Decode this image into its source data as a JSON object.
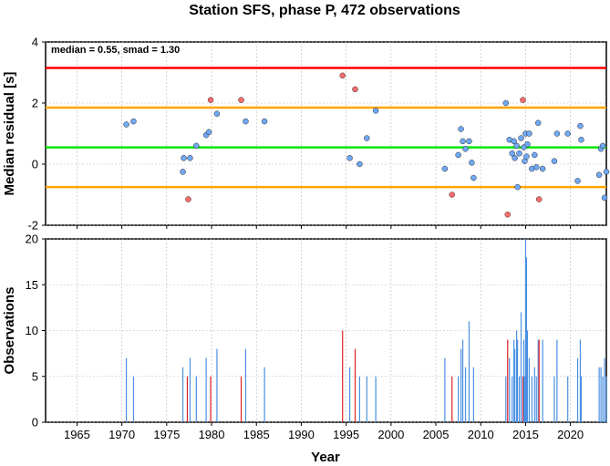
{
  "title": "Station SFS, phase P, 472 observations",
  "xlabel": "Year",
  "chart_data": [
    {
      "type": "scatter",
      "ylabel": "Median residual [s]",
      "annotation": "median = 0.55, smad = 1.30",
      "xlim": [
        1961.5,
        2024.0
      ],
      "ylim": [
        -2,
        4
      ],
      "yticks": [
        -2,
        0,
        2,
        4
      ],
      "xticks": [
        1965,
        1970,
        1975,
        1980,
        1985,
        1990,
        1995,
        2000,
        2005,
        2010,
        2015,
        2020
      ],
      "reference_lines": [
        {
          "name": "upper-red",
          "y": 3.15,
          "color": "#ff0000"
        },
        {
          "name": "upper-orange",
          "y": 1.85,
          "color": "#ffa500"
        },
        {
          "name": "median",
          "y": 0.55,
          "color": "#00e600"
        },
        {
          "name": "lower-orange",
          "y": -0.75,
          "color": "#ffa500"
        }
      ],
      "colors": {
        "normal": "#6fa8f5",
        "outlier": "#ff6b6b"
      },
      "points": [
        {
          "x": 1970.5,
          "y": 1.3,
          "outlier": false
        },
        {
          "x": 1971.3,
          "y": 1.4,
          "outlier": false
        },
        {
          "x": 1976.8,
          "y": -0.25,
          "outlier": false
        },
        {
          "x": 1976.9,
          "y": 0.2,
          "outlier": false
        },
        {
          "x": 1977.4,
          "y": -1.15,
          "outlier": true
        },
        {
          "x": 1977.6,
          "y": 0.2,
          "outlier": false
        },
        {
          "x": 1978.3,
          "y": 0.6,
          "outlier": false
        },
        {
          "x": 1979.4,
          "y": 0.95,
          "outlier": false
        },
        {
          "x": 1979.7,
          "y": 1.05,
          "outlier": false
        },
        {
          "x": 1979.9,
          "y": 2.1,
          "outlier": true
        },
        {
          "x": 1980.6,
          "y": 1.65,
          "outlier": false
        },
        {
          "x": 1983.3,
          "y": 2.1,
          "outlier": true
        },
        {
          "x": 1983.8,
          "y": 1.4,
          "outlier": false
        },
        {
          "x": 1985.9,
          "y": 1.4,
          "outlier": false
        },
        {
          "x": 1994.6,
          "y": 2.9,
          "outlier": true
        },
        {
          "x": 1995.4,
          "y": 0.2,
          "outlier": false
        },
        {
          "x": 1996.0,
          "y": 2.45,
          "outlier": true
        },
        {
          "x": 1996.5,
          "y": 0.0,
          "outlier": false
        },
        {
          "x": 1997.3,
          "y": 0.85,
          "outlier": false
        },
        {
          "x": 1998.3,
          "y": 1.75,
          "outlier": false
        },
        {
          "x": 2006.0,
          "y": -0.15,
          "outlier": false
        },
        {
          "x": 2006.8,
          "y": -1.0,
          "outlier": true
        },
        {
          "x": 2007.5,
          "y": 0.3,
          "outlier": false
        },
        {
          "x": 2007.8,
          "y": 1.15,
          "outlier": false
        },
        {
          "x": 2008.0,
          "y": 0.75,
          "outlier": false
        },
        {
          "x": 2008.3,
          "y": 0.5,
          "outlier": false
        },
        {
          "x": 2008.7,
          "y": 0.75,
          "outlier": false
        },
        {
          "x": 2009.0,
          "y": 0.05,
          "outlier": false
        },
        {
          "x": 2009.2,
          "y": -0.45,
          "outlier": false
        },
        {
          "x": 2012.8,
          "y": 2.0,
          "outlier": false
        },
        {
          "x": 2013.0,
          "y": -1.65,
          "outlier": true
        },
        {
          "x": 2013.2,
          "y": 0.8,
          "outlier": false
        },
        {
          "x": 2013.5,
          "y": 0.35,
          "outlier": false
        },
        {
          "x": 2013.7,
          "y": 0.75,
          "outlier": false
        },
        {
          "x": 2013.8,
          "y": 0.2,
          "outlier": false
        },
        {
          "x": 2014.0,
          "y": 0.6,
          "outlier": false
        },
        {
          "x": 2014.1,
          "y": -0.75,
          "outlier": false
        },
        {
          "x": 2014.3,
          "y": 0.35,
          "outlier": false
        },
        {
          "x": 2014.5,
          "y": 0.85,
          "outlier": false
        },
        {
          "x": 2014.7,
          "y": 2.1,
          "outlier": true
        },
        {
          "x": 2014.8,
          "y": 0.55,
          "outlier": false
        },
        {
          "x": 2014.9,
          "y": 0.1,
          "outlier": false
        },
        {
          "x": 2015.0,
          "y": 1.0,
          "outlier": false
        },
        {
          "x": 2015.1,
          "y": 0.25,
          "outlier": false
        },
        {
          "x": 2015.2,
          "y": 0.65,
          "outlier": false
        },
        {
          "x": 2015.4,
          "y": 1.0,
          "outlier": false
        },
        {
          "x": 2015.7,
          "y": -0.15,
          "outlier": false
        },
        {
          "x": 2016.0,
          "y": 0.3,
          "outlier": false
        },
        {
          "x": 2016.2,
          "y": -0.1,
          "outlier": false
        },
        {
          "x": 2016.4,
          "y": 1.35,
          "outlier": false
        },
        {
          "x": 2016.5,
          "y": -1.15,
          "outlier": true
        },
        {
          "x": 2016.9,
          "y": -0.15,
          "outlier": false
        },
        {
          "x": 2018.2,
          "y": 0.1,
          "outlier": false
        },
        {
          "x": 2018.5,
          "y": 1.0,
          "outlier": false
        },
        {
          "x": 2019.7,
          "y": 1.0,
          "outlier": false
        },
        {
          "x": 2020.8,
          "y": -0.55,
          "outlier": false
        },
        {
          "x": 2021.1,
          "y": 1.25,
          "outlier": false
        },
        {
          "x": 2021.2,
          "y": 0.8,
          "outlier": false
        },
        {
          "x": 2023.2,
          "y": -0.35,
          "outlier": false
        },
        {
          "x": 2023.4,
          "y": 0.5,
          "outlier": false
        },
        {
          "x": 2023.6,
          "y": 0.6,
          "outlier": false
        },
        {
          "x": 2023.8,
          "y": -1.1,
          "outlier": false
        },
        {
          "x": 2024.0,
          "y": -0.25,
          "outlier": false
        }
      ]
    },
    {
      "type": "bar",
      "ylabel": "Observations",
      "xlim": [
        1961.5,
        2024.0
      ],
      "ylim": [
        0,
        20
      ],
      "yticks": [
        0,
        5,
        10,
        15,
        20
      ],
      "xticks": [
        1965,
        1970,
        1975,
        1980,
        1985,
        1990,
        1995,
        2000,
        2005,
        2010,
        2015,
        2020
      ],
      "colors": {
        "normal": "#4a90e2",
        "outlier": "#e02020"
      },
      "bars": [
        {
          "x": 1970.5,
          "value": 7,
          "outlier": false
        },
        {
          "x": 1971.3,
          "value": 5,
          "outlier": false
        },
        {
          "x": 1976.8,
          "value": 6,
          "outlier": false
        },
        {
          "x": 1977.3,
          "value": 5,
          "outlier": true
        },
        {
          "x": 1977.6,
          "value": 7,
          "outlier": false
        },
        {
          "x": 1978.3,
          "value": 5,
          "outlier": false
        },
        {
          "x": 1979.4,
          "value": 7,
          "outlier": false
        },
        {
          "x": 1979.9,
          "value": 5,
          "outlier": true
        },
        {
          "x": 1980.6,
          "value": 8,
          "outlier": false
        },
        {
          "x": 1983.3,
          "value": 5,
          "outlier": true
        },
        {
          "x": 1983.8,
          "value": 8,
          "outlier": false
        },
        {
          "x": 1985.9,
          "value": 6,
          "outlier": false
        },
        {
          "x": 1994.6,
          "value": 10,
          "outlier": true
        },
        {
          "x": 1995.4,
          "value": 6,
          "outlier": false
        },
        {
          "x": 1996.0,
          "value": 8,
          "outlier": true
        },
        {
          "x": 1996.5,
          "value": 5,
          "outlier": false
        },
        {
          "x": 1997.3,
          "value": 5,
          "outlier": false
        },
        {
          "x": 1998.3,
          "value": 5,
          "outlier": false
        },
        {
          "x": 2006.0,
          "value": 7,
          "outlier": false
        },
        {
          "x": 2006.8,
          "value": 5,
          "outlier": true
        },
        {
          "x": 2007.5,
          "value": 5,
          "outlier": false
        },
        {
          "x": 2007.8,
          "value": 8,
          "outlier": false
        },
        {
          "x": 2008.0,
          "value": 9,
          "outlier": false
        },
        {
          "x": 2008.3,
          "value": 6,
          "outlier": false
        },
        {
          "x": 2008.7,
          "value": 11,
          "outlier": false
        },
        {
          "x": 2009.2,
          "value": 6,
          "outlier": false
        },
        {
          "x": 2012.8,
          "value": 5,
          "outlier": false
        },
        {
          "x": 2013.0,
          "value": 9,
          "outlier": true
        },
        {
          "x": 2013.2,
          "value": 7,
          "outlier": false
        },
        {
          "x": 2013.5,
          "value": 5,
          "outlier": false
        },
        {
          "x": 2013.7,
          "value": 9,
          "outlier": false
        },
        {
          "x": 2013.8,
          "value": 8,
          "outlier": false
        },
        {
          "x": 2014.0,
          "value": 10,
          "outlier": false
        },
        {
          "x": 2014.1,
          "value": 9,
          "outlier": false
        },
        {
          "x": 2014.3,
          "value": 5,
          "outlier": false
        },
        {
          "x": 2014.5,
          "value": 12,
          "outlier": false
        },
        {
          "x": 2014.7,
          "value": 5,
          "outlier": true
        },
        {
          "x": 2014.8,
          "value": 9,
          "outlier": false
        },
        {
          "x": 2014.9,
          "value": 5,
          "outlier": false
        },
        {
          "x": 2015.0,
          "value": 20,
          "outlier": false
        },
        {
          "x": 2015.1,
          "value": 18,
          "outlier": false
        },
        {
          "x": 2015.2,
          "value": 10,
          "outlier": false
        },
        {
          "x": 2015.4,
          "value": 7,
          "outlier": false
        },
        {
          "x": 2015.7,
          "value": 5,
          "outlier": false
        },
        {
          "x": 2016.0,
          "value": 6,
          "outlier": false
        },
        {
          "x": 2016.2,
          "value": 5,
          "outlier": false
        },
        {
          "x": 2016.4,
          "value": 9,
          "outlier": false
        },
        {
          "x": 2016.5,
          "value": 9,
          "outlier": true
        },
        {
          "x": 2016.9,
          "value": 9,
          "outlier": false
        },
        {
          "x": 2018.2,
          "value": 5,
          "outlier": false
        },
        {
          "x": 2018.5,
          "value": 9,
          "outlier": false
        },
        {
          "x": 2019.7,
          "value": 5,
          "outlier": false
        },
        {
          "x": 2020.8,
          "value": 7,
          "outlier": false
        },
        {
          "x": 2021.1,
          "value": 9,
          "outlier": false
        },
        {
          "x": 2021.2,
          "value": 5,
          "outlier": false
        },
        {
          "x": 2023.2,
          "value": 6,
          "outlier": false
        },
        {
          "x": 2023.4,
          "value": 6,
          "outlier": false
        },
        {
          "x": 2023.6,
          "value": 5,
          "outlier": false
        },
        {
          "x": 2023.8,
          "value": 7,
          "outlier": false
        },
        {
          "x": 2024.0,
          "value": 5,
          "outlier": false
        }
      ]
    }
  ]
}
